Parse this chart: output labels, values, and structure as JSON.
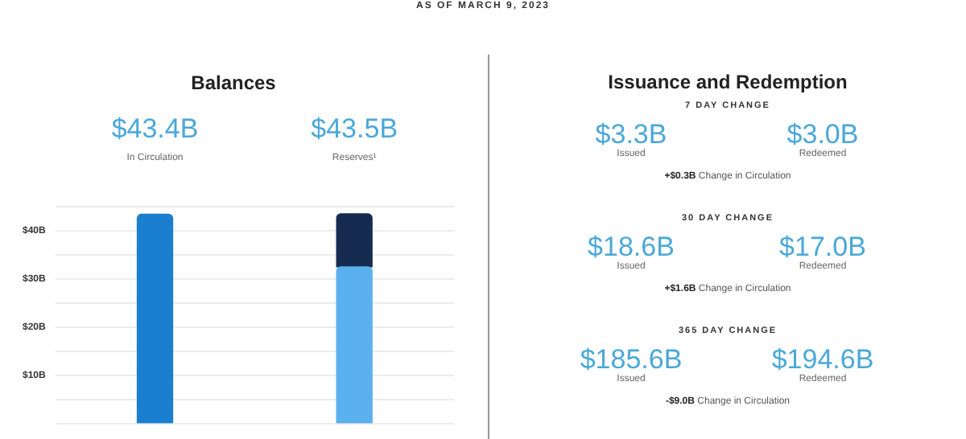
{
  "chart_data": [
    {
      "type": "bar",
      "title": "Balances",
      "annotations": [
        "AS OF MARCH 9, 2023"
      ],
      "categories": [
        "In Circulation",
        "Reserves¹"
      ],
      "stacked": true,
      "series": [
        {
          "colors": [
            "#1a7fcf",
            "#5bb0ee"
          ],
          "values": [
            43.4,
            32.5
          ]
        },
        {
          "color": "#162b50",
          "values": [
            null,
            11.0
          ]
        }
      ],
      "totals": [
        "$43.4B",
        "$43.5B"
      ],
      "ylim": [
        0,
        45
      ],
      "yticks": [
        {
          "value": 0,
          "label": null
        },
        {
          "value": 5,
          "label": null
        },
        {
          "value": 10,
          "label": "$10B"
        },
        {
          "value": 15,
          "label": null
        },
        {
          "value": 20,
          "label": "$20B"
        },
        {
          "value": 25,
          "label": null
        },
        {
          "value": 30,
          "label": "$30B"
        },
        {
          "value": 35,
          "label": null
        },
        {
          "value": 40,
          "label": "$40B"
        },
        {
          "value": 45,
          "label": null
        }
      ],
      "grid": "y",
      "legend": false
    },
    {
      "type": "other",
      "title": "Issuance and Redemption",
      "annotations": [
        "7 DAY CHANGE",
        "$3.3B",
        "Issued",
        "$3.0B",
        "Redeemed",
        "+$0.3B Change in Circulation",
        "30 DAY CHANGE",
        "$18.6B",
        "Issued",
        "$17.0B",
        "Redeemed",
        "+$1.6B Change in Circulation",
        "365 DAY CHANGE",
        "$185.6B",
        "Issued",
        "$194.6B",
        "Redeemed",
        "-$9.0B Change in Circulation"
      ]
    }
  ]
}
